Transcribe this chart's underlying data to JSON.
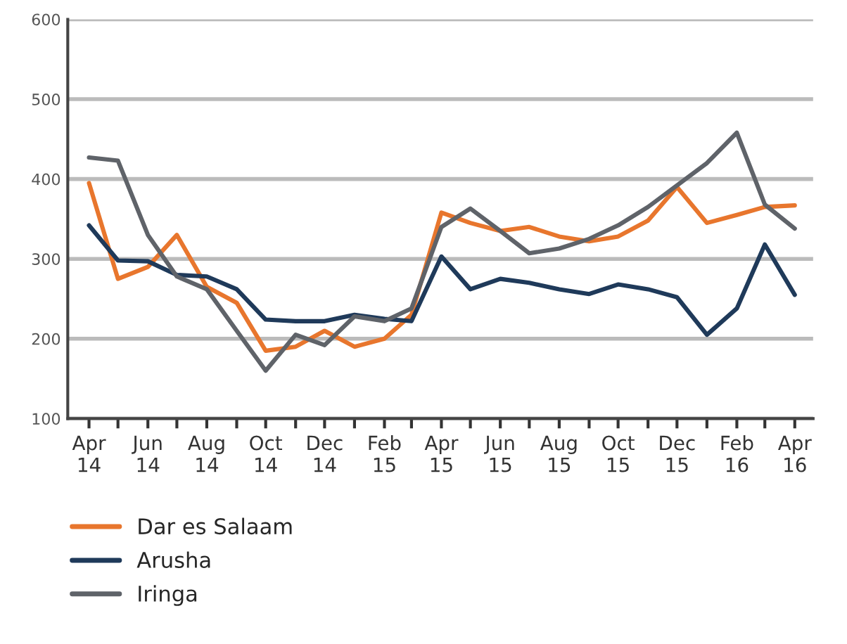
{
  "chart_data": {
    "type": "line",
    "x": [
      "2014-04",
      "2014-05",
      "2014-06",
      "2014-07",
      "2014-08",
      "2014-09",
      "2014-10",
      "2014-11",
      "2014-12",
      "2015-01",
      "2015-02",
      "2015-03",
      "2015-04",
      "2015-05",
      "2015-06",
      "2015-07",
      "2015-08",
      "2015-09",
      "2015-10",
      "2015-11",
      "2015-12",
      "2016-01",
      "2016-02",
      "2016-03",
      "2016-04"
    ],
    "series": [
      {
        "name": "Dar es Salaam",
        "color": "#e8762d",
        "values": [
          395,
          275,
          290,
          330,
          265,
          245,
          185,
          190,
          210,
          190,
          200,
          230,
          358,
          345,
          335,
          340,
          328,
          322,
          328,
          348,
          390,
          345,
          355,
          365,
          367
        ]
      },
      {
        "name": "Arusha",
        "color": "#1f3a5a",
        "values": [
          342,
          298,
          297,
          280,
          278,
          262,
          224,
          222,
          222,
          230,
          225,
          222,
          303,
          262,
          275,
          270,
          262,
          256,
          268,
          262,
          252,
          205,
          238,
          318,
          255
        ]
      },
      {
        "name": "Iringa",
        "color": "#5f6369",
        "values": [
          427,
          423,
          330,
          278,
          262,
          210,
          160,
          205,
          192,
          228,
          222,
          238,
          340,
          363,
          335,
          307,
          313,
          325,
          342,
          365,
          392,
          420,
          458,
          368,
          338
        ]
      }
    ],
    "xlim": [
      "2014-03-10",
      "2016-04-20"
    ],
    "xticks": [
      {
        "value": "2014-04",
        "label": "Apr\n14"
      },
      {
        "value": "2014-05",
        "label": null
      },
      {
        "value": "2014-06",
        "label": "Jun\n14"
      },
      {
        "value": "2014-07",
        "label": null
      },
      {
        "value": "2014-08",
        "label": "Aug\n14"
      },
      {
        "value": "2014-09",
        "label": null
      },
      {
        "value": "2014-10",
        "label": "Oct\n14"
      },
      {
        "value": "2014-11",
        "label": null
      },
      {
        "value": "2014-12",
        "label": "Dec\n14"
      },
      {
        "value": "2015-01",
        "label": null
      },
      {
        "value": "2015-02",
        "label": "Feb\n15"
      },
      {
        "value": "2015-03",
        "label": null
      },
      {
        "value": "2015-04",
        "label": "Apr\n15"
      },
      {
        "value": "2015-05",
        "label": null
      },
      {
        "value": "2015-06",
        "label": "Jun\n15"
      },
      {
        "value": "2015-07",
        "label": null
      },
      {
        "value": "2015-08",
        "label": "Aug\n15"
      },
      {
        "value": "2015-09",
        "label": null
      },
      {
        "value": "2015-10",
        "label": "Oct\n15"
      },
      {
        "value": "2015-11",
        "label": null
      },
      {
        "value": "2015-12",
        "label": "Dec\n15"
      },
      {
        "value": "2016-01",
        "label": null
      },
      {
        "value": "2016-02",
        "label": "Feb\n16"
      },
      {
        "value": "2016-03",
        "label": null
      },
      {
        "value": "2016-04",
        "label": "Apr\n16"
      }
    ],
    "ylim": [
      100,
      600
    ],
    "yticks": [
      100,
      200,
      300,
      400,
      500,
      600
    ],
    "grid": "y",
    "legend": "bottom left",
    "marker": "none",
    "line_style": "solid"
  }
}
